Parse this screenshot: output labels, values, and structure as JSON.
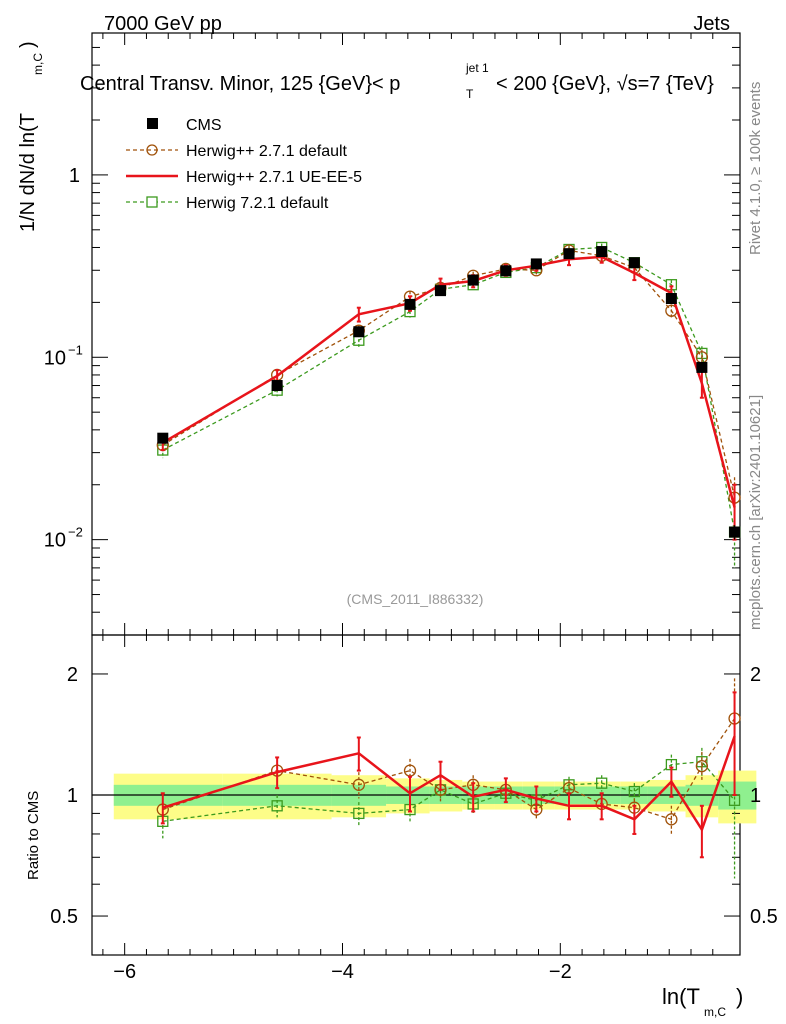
{
  "header": {
    "left": "7000 GeV pp",
    "right": "Jets",
    "title": "Central Transv. Minor, 125 {GeV}< p",
    "title_sup": "jet 1",
    "title_sub": "T",
    "title_tail": " < 200 {GeV}, √s=7 {TeV}"
  },
  "side_labels": {
    "rivet": "Rivet 4.1.0, ≥ 100k events",
    "mcplots": "mcplots.cern.ch [arXiv:2401.10621]"
  },
  "watermark": "(CMS_2011_I886332)",
  "colors": {
    "cms": "#000000",
    "herwig_default": "#a0520a",
    "herwig_ueee5": "#e8141b",
    "herwig7": "#3c9a1e",
    "band_inner": "#8ff08f",
    "band_outer": "#fdfd88"
  },
  "legend": [
    {
      "key": "cms",
      "label": "CMS"
    },
    {
      "key": "herwig_default",
      "label": "Herwig++ 2.7.1 default"
    },
    {
      "key": "herwig_ueee5",
      "label": "Herwig++ 2.7.1 UE-EE-5"
    },
    {
      "key": "herwig7",
      "label": "Herwig 7.2.1 default"
    }
  ],
  "chart_data": [
    {
      "type": "line",
      "panel": "main",
      "ylabel_main": "1/N   dN/d ln(T",
      "ylabel_sub": "m,C",
      "yscale": "log",
      "ylim": [
        0.003,
        6.0
      ],
      "xlim": [
        -6.3,
        -0.35
      ],
      "y_ticks": [
        {
          "value": 1,
          "label": "1"
        },
        {
          "value": 0.1,
          "label": "10",
          "sup": "−1"
        },
        {
          "value": 0.01,
          "label": "10",
          "sup": "−2"
        }
      ],
      "x": [
        -5.65,
        -4.6,
        -3.85,
        -3.38,
        -3.1,
        -2.8,
        -2.5,
        -2.22,
        -1.92,
        -1.62,
        -1.32,
        -0.98,
        -0.7,
        -0.4
      ],
      "series": [
        {
          "key": "cms",
          "name": "CMS",
          "style": "markers",
          "values": [
            0.036,
            0.07,
            0.138,
            0.195,
            0.232,
            0.265,
            0.298,
            0.325,
            0.37,
            0.38,
            0.33,
            0.21,
            0.088,
            0.011
          ],
          "errors": [
            0.002,
            0.003,
            0.006,
            0.008,
            0.009,
            0.01,
            0.01,
            0.012,
            0.013,
            0.014,
            0.012,
            0.01,
            0.006,
            0.001
          ]
        },
        {
          "key": "herwig_default",
          "name": "Herwig++ 2.7.1 default",
          "style": "dashed-circle",
          "values": [
            0.033,
            0.08,
            0.14,
            0.215,
            0.24,
            0.28,
            0.305,
            0.3,
            0.385,
            0.36,
            0.31,
            0.18,
            0.1,
            0.017
          ],
          "errors": [
            0.003,
            0.005,
            0.01,
            0.015,
            0.015,
            0.015,
            0.015,
            0.015,
            0.02,
            0.02,
            0.02,
            0.015,
            0.01,
            0.005
          ]
        },
        {
          "key": "herwig_ueee5",
          "name": "Herwig++ 2.7.1 UE-EE-5",
          "style": "solid",
          "values": [
            0.034,
            0.079,
            0.172,
            0.198,
            0.25,
            0.262,
            0.3,
            0.318,
            0.345,
            0.355,
            0.29,
            0.225,
            0.072,
            0.015
          ],
          "errors": [
            0.003,
            0.006,
            0.015,
            0.018,
            0.02,
            0.02,
            0.02,
            0.02,
            0.025,
            0.025,
            0.025,
            0.02,
            0.012,
            0.005
          ]
        },
        {
          "key": "herwig7",
          "name": "Herwig 7.2.1 default",
          "style": "dashed-square",
          "values": [
            0.031,
            0.066,
            0.124,
            0.178,
            0.236,
            0.25,
            0.292,
            0.31,
            0.39,
            0.4,
            0.33,
            0.25,
            0.105,
            0.011
          ],
          "errors": [
            0.003,
            0.005,
            0.01,
            0.013,
            0.015,
            0.015,
            0.015,
            0.015,
            0.02,
            0.02,
            0.02,
            0.015,
            0.01,
            0.004
          ]
        }
      ]
    },
    {
      "type": "line",
      "panel": "ratio",
      "ylabel": "Ratio to CMS",
      "xlabel": "ln(T",
      "xlabel_sub": "m,C",
      "yscale": "log",
      "ylim": [
        0.4,
        2.5
      ],
      "xlim": [
        -6.3,
        -0.35
      ],
      "y_ticks": [
        {
          "value": 2,
          "label": "2"
        },
        {
          "value": 1,
          "label": "1"
        },
        {
          "value": 0.5,
          "label": "0.5"
        }
      ],
      "x_ticks": [
        {
          "value": -6,
          "label": "−6"
        },
        {
          "value": -4,
          "label": "−4"
        },
        {
          "value": -2,
          "label": "−2"
        }
      ],
      "band_edges": [
        -6.1,
        -5.1,
        -4.1,
        -3.6,
        -3.2,
        -2.9,
        -2.6,
        -2.35,
        -2.05,
        -1.75,
        -1.45,
        -1.2,
        -0.85,
        -0.55,
        -0.2
      ],
      "band_inner": [
        0.06,
        0.06,
        0.06,
        0.05,
        0.05,
        0.05,
        0.05,
        0.05,
        0.05,
        0.05,
        0.05,
        0.05,
        0.06,
        0.08
      ],
      "band_outer": [
        0.13,
        0.13,
        0.12,
        0.1,
        0.09,
        0.08,
        0.08,
        0.08,
        0.08,
        0.08,
        0.08,
        0.09,
        0.12,
        0.15
      ],
      "x": [
        -5.65,
        -4.6,
        -3.85,
        -3.38,
        -3.1,
        -2.8,
        -2.5,
        -2.22,
        -1.92,
        -1.62,
        -1.32,
        -0.98,
        -0.7,
        -0.4
      ],
      "series": [
        {
          "key": "herwig_default",
          "name": "Herwig++ 2.7.1 default",
          "style": "dashed-circle",
          "values": [
            0.92,
            1.15,
            1.06,
            1.15,
            1.03,
            1.06,
            1.03,
            0.92,
            1.04,
            0.95,
            0.93,
            0.87,
            1.18,
            1.55
          ],
          "errors": [
            0.08,
            0.08,
            0.08,
            0.08,
            0.07,
            0.06,
            0.05,
            0.05,
            0.05,
            0.05,
            0.05,
            0.07,
            0.1,
            0.4
          ]
        },
        {
          "key": "herwig_ueee5",
          "name": "Herwig++ 2.7.1 UE-EE-5",
          "style": "solid",
          "values": [
            0.93,
            1.14,
            1.27,
            1.01,
            1.12,
            0.99,
            1.03,
            0.98,
            0.94,
            0.94,
            0.87,
            1.08,
            0.82,
            1.4
          ],
          "errors": [
            0.08,
            0.1,
            0.12,
            0.1,
            0.09,
            0.08,
            0.07,
            0.07,
            0.07,
            0.07,
            0.07,
            0.09,
            0.12,
            0.4
          ]
        },
        {
          "key": "herwig7",
          "name": "Herwig 7.2.1 default",
          "style": "dashed-square",
          "values": [
            0.86,
            0.94,
            0.9,
            0.92,
            1.03,
            0.95,
            1.01,
            0.97,
            1.06,
            1.07,
            1.02,
            1.19,
            1.21,
            0.97
          ],
          "errors": [
            0.08,
            0.06,
            0.06,
            0.06,
            0.06,
            0.05,
            0.05,
            0.05,
            0.05,
            0.05,
            0.05,
            0.07,
            0.1,
            0.35
          ]
        }
      ]
    }
  ]
}
